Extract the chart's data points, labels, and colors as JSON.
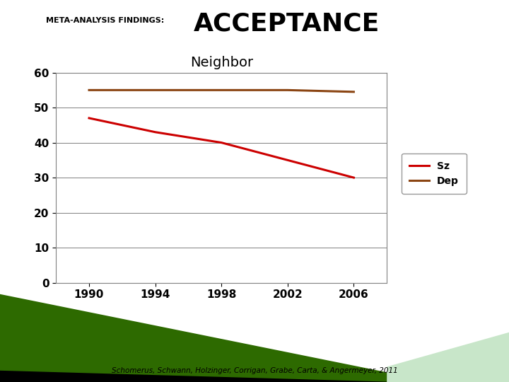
{
  "title_small": "META-ANALYSIS FINDINGS:",
  "title_large": "ACCEPTANCE",
  "subtitle": "Neighbor",
  "citation": "Schomerus, Schwann, Holzinger, Corrigan, Grabe, Carta, & Angermeyer, 2011",
  "x_years": [
    1990,
    1994,
    1998,
    2002,
    2006
  ],
  "sz_values": [
    47,
    43,
    40,
    35,
    30
  ],
  "dep_values": [
    55,
    55,
    55,
    55,
    54.5
  ],
  "sz_color": "#cc0000",
  "dep_color": "#8B4513",
  "ylim": [
    0,
    60
  ],
  "yticks": [
    0,
    10,
    20,
    30,
    40,
    50,
    60
  ],
  "background_color": "#ffffff",
  "plot_bg_color": "#ffffff",
  "green_area_color": "#2d6a00",
  "black_band_color": "#000000",
  "light_green_color": "#c8e6c9",
  "line_width": 2.2,
  "legend_fontsize": 10,
  "subtitle_fontsize": 14,
  "tick_fontsize": 11,
  "small_title_fontsize": 8,
  "large_title_fontsize": 26
}
